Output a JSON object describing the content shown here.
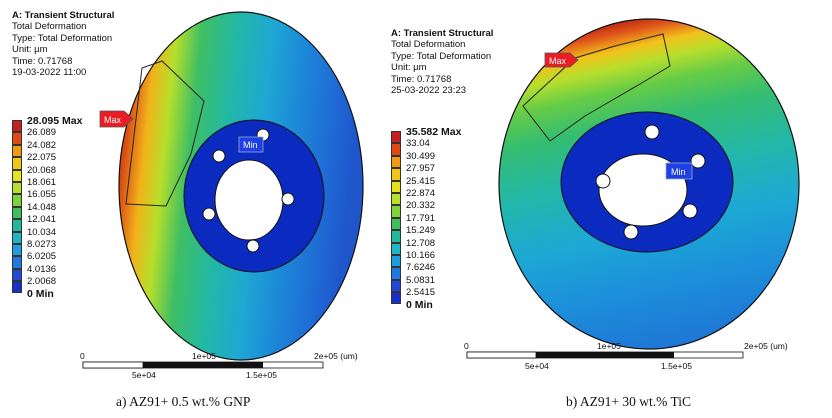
{
  "panels": [
    {
      "header": "A: Transient Structural",
      "lines": [
        "Total Deformation",
        "Type: Total Deformation",
        "Unit: µm",
        "Time: 0.71768",
        "19-03-2022 11:00"
      ],
      "legend": [
        "28.095 Max",
        "26.089",
        "24.082",
        "22.075",
        "20.068",
        "18.061",
        "16.055",
        "14.048",
        "12.041",
        "10.034",
        "8.0273",
        "6.0205",
        "4.0136",
        "2.0068",
        "0 Min"
      ],
      "max_tag": "Max",
      "min_tag": "Min",
      "scale": {
        "top_left": "0",
        "top_mid": "1e+05",
        "top_right": "2e+05 (um)",
        "bot_left": "5e+04",
        "bot_right": "1.5e+05"
      },
      "caption": "a) AZ91+ 0.5 wt.% GNP"
    },
    {
      "header": "A: Transient Structural",
      "lines": [
        "Total Deformation",
        "Type: Total Deformation",
        "Unit: µm",
        "Time: 0.71768",
        "25-03-2022 23:23"
      ],
      "legend": [
        "35.582 Max",
        "33.04",
        "30.499",
        "27.957",
        "25.415",
        "22.874",
        "20.332",
        "17.791",
        "15.249",
        "12.708",
        "10.166",
        "7.6246",
        "5.0831",
        "2.5415",
        "0 Min"
      ],
      "max_tag": "Max",
      "min_tag": "Min",
      "scale": {
        "top_left": "0",
        "top_mid": "1e+05",
        "top_right": "2e+05 (um)",
        "bot_left": "5e+04",
        "bot_right": "1.5e+05"
      },
      "caption": "b) AZ91+ 30 wt.% TiC"
    }
  ],
  "colors": {
    "legend_swatches": [
      "#c81e1e",
      "#e04a12",
      "#f29a10",
      "#f1c614",
      "#e3e51a",
      "#b8e02a",
      "#7fd23c",
      "#3fbf5c",
      "#22b99a",
      "#1fb5c7",
      "#1c9ee0",
      "#1f78e2",
      "#2149d8",
      "#1730c8",
      "#0d1ea8"
    ],
    "disk_blue": "#0a2bbd",
    "tag_red": "#ea1c24",
    "tag_blue": "#1e3fe6"
  }
}
